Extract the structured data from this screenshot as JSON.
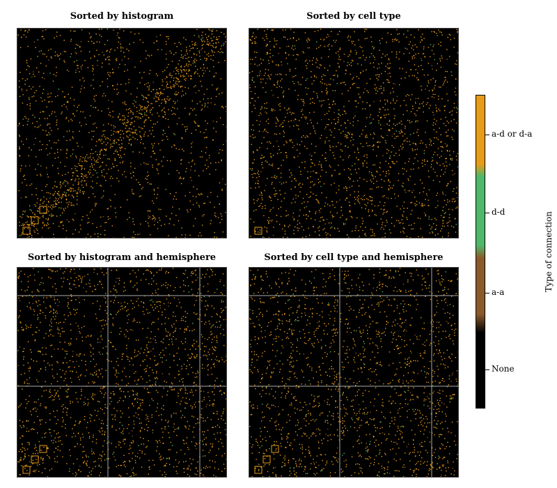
{
  "chart_data": {
    "type": "heatmap",
    "panels": [
      {
        "title": "Sorted by histogram",
        "hemisphere_grid": false
      },
      {
        "title": "Sorted by cell type",
        "hemisphere_grid": false
      },
      {
        "title": "Sorted by histogram and hemisphere",
        "hemisphere_grid": true
      },
      {
        "title": "Sorted by cell type and hemisphere",
        "hemisphere_grid": true
      }
    ],
    "colorbar": {
      "label": "Type of connection",
      "categories": [
        "None",
        "a-a",
        "d-d",
        "a-d or d-a"
      ],
      "colors": [
        "#000000",
        "#8a5a2b",
        "#4fb76a",
        "#e89b17"
      ]
    }
  }
}
